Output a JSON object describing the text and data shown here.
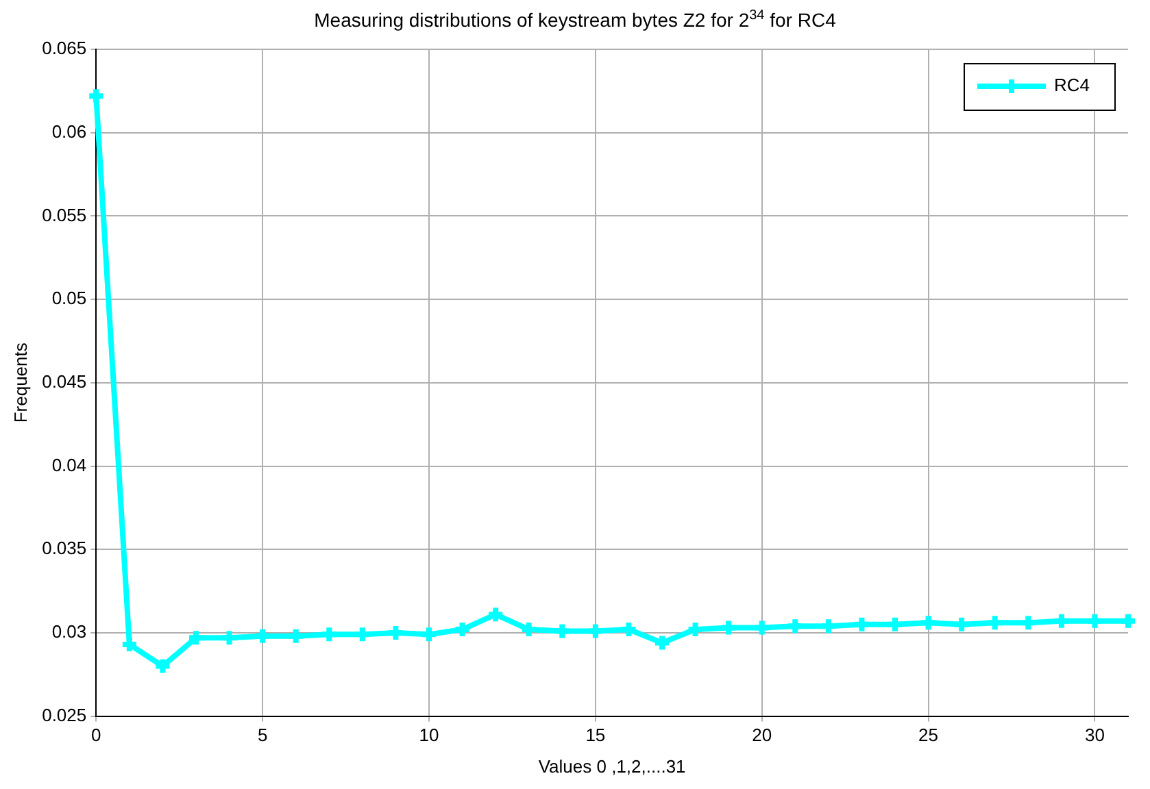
{
  "chart_data": {
    "type": "line",
    "title": "Measuring distributions of keystream bytes Z2 for 2$^{34}$ for RC4",
    "xlabel": "Values 0 ,1,2,....31",
    "ylabel": "Frequents",
    "x": [
      0,
      1,
      2,
      3,
      4,
      5,
      6,
      7,
      8,
      9,
      10,
      11,
      12,
      13,
      14,
      15,
      16,
      17,
      18,
      19,
      20,
      21,
      22,
      23,
      24,
      25,
      26,
      27,
      28,
      29,
      30,
      31
    ],
    "series": [
      {
        "name": "RC4",
        "color": "#00ffff",
        "values": [
          0.0622,
          0.0293,
          0.028,
          0.0297,
          0.0297,
          0.0298,
          0.0298,
          0.0299,
          0.0299,
          0.03,
          0.0299,
          0.0302,
          0.0311,
          0.0302,
          0.0301,
          0.0301,
          0.0302,
          0.0294,
          0.0302,
          0.0303,
          0.0303,
          0.0304,
          0.0304,
          0.0305,
          0.0305,
          0.0306,
          0.0305,
          0.0306,
          0.0306,
          0.0307,
          0.0307,
          0.0307
        ]
      }
    ],
    "xlim": [
      0,
      31
    ],
    "xticks": [
      0,
      5,
      10,
      15,
      20,
      25,
      30
    ],
    "ylim": [
      0.025,
      0.065
    ],
    "yticks": [
      {
        "value": 0.025,
        "label": "0.025"
      },
      {
        "value": 0.03,
        "label": "0.03"
      },
      {
        "value": 0.035,
        "label": "0.035"
      },
      {
        "value": 0.04,
        "label": "0.04"
      },
      {
        "value": 0.045,
        "label": "0.045"
      },
      {
        "value": 0.05,
        "label": "0.05"
      },
      {
        "value": 0.055,
        "label": "0.055"
      },
      {
        "value": 0.06,
        "label": "0.06"
      },
      {
        "value": 0.065,
        "label": "0.065"
      }
    ],
    "grid": true,
    "legend": "top right",
    "marker": "cross",
    "line_style": "solid"
  }
}
